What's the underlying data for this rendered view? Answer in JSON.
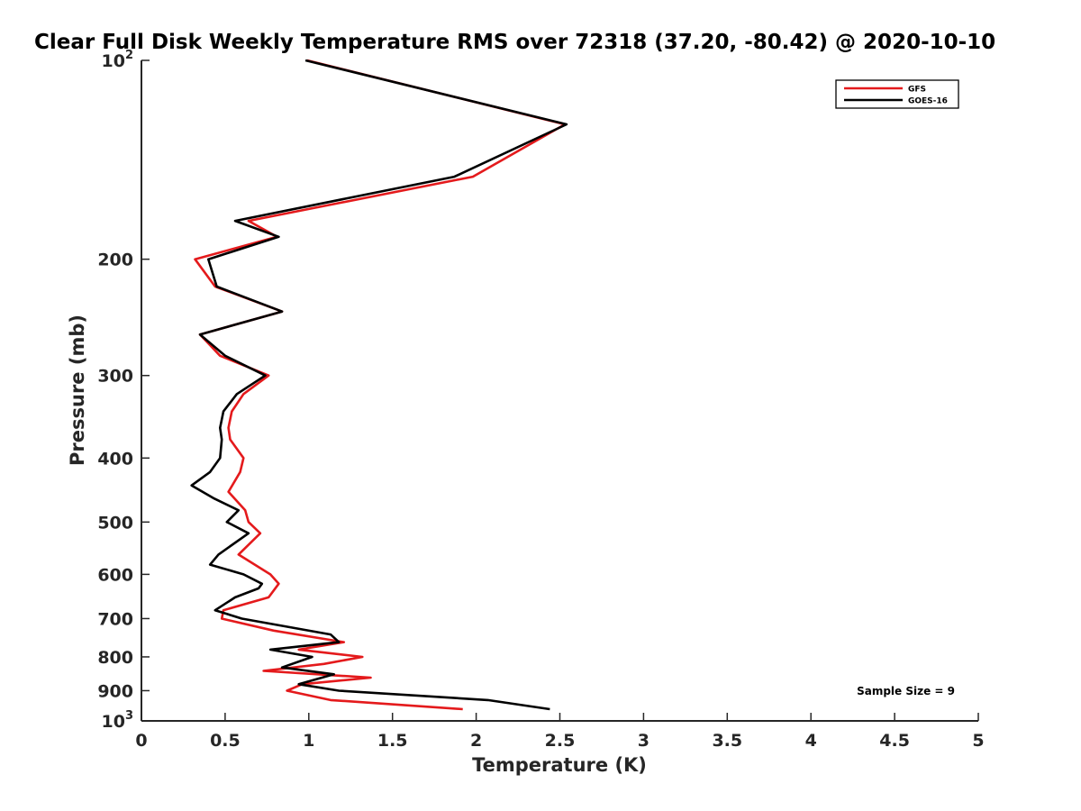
{
  "chart_data": {
    "type": "line",
    "title": "Clear Full Disk Weekly Temperature RMS over 72318 (37.20, -80.42) @ 2020-10-10",
    "xlabel": "Temperature (K)",
    "ylabel": "Pressure (mb)",
    "xlim": [
      0,
      5
    ],
    "ylim": [
      1000,
      100
    ],
    "yscale": "log",
    "y_reversed": true,
    "grid": false,
    "legend_position": "top-right",
    "x_ticks": [
      "0",
      "0.5",
      "1",
      "1.5",
      "2",
      "2.5",
      "3",
      "3.5",
      "4",
      "4.5",
      "5"
    ],
    "y_ticks": [
      {
        "value": 100,
        "base": "10",
        "exp": "2"
      },
      {
        "value": 200,
        "base": "200",
        "exp": ""
      },
      {
        "value": 300,
        "base": "300",
        "exp": ""
      },
      {
        "value": 400,
        "base": "400",
        "exp": ""
      },
      {
        "value": 500,
        "base": "500",
        "exp": ""
      },
      {
        "value": 600,
        "base": "600",
        "exp": ""
      },
      {
        "value": 700,
        "base": "700",
        "exp": ""
      },
      {
        "value": 800,
        "base": "800",
        "exp": ""
      },
      {
        "value": 900,
        "base": "900",
        "exp": ""
      },
      {
        "value": 1000,
        "base": "10",
        "exp": "3"
      }
    ],
    "series": [
      {
        "name": "GFS",
        "color": "#e41a1c",
        "points": [
          [
            0.99,
            100
          ],
          [
            2.53,
            125
          ],
          [
            1.98,
            150
          ],
          [
            0.64,
            175
          ],
          [
            0.81,
            185
          ],
          [
            0.32,
            200
          ],
          [
            0.44,
            220
          ],
          [
            0.84,
            240
          ],
          [
            0.35,
            260
          ],
          [
            0.47,
            280
          ],
          [
            0.76,
            300
          ],
          [
            0.61,
            320
          ],
          [
            0.54,
            340
          ],
          [
            0.52,
            360
          ],
          [
            0.53,
            375
          ],
          [
            0.61,
            400
          ],
          [
            0.59,
            420
          ],
          [
            0.52,
            450
          ],
          [
            0.62,
            480
          ],
          [
            0.64,
            500
          ],
          [
            0.71,
            520
          ],
          [
            0.58,
            560
          ],
          [
            0.77,
            600
          ],
          [
            0.82,
            620
          ],
          [
            0.76,
            650
          ],
          [
            0.49,
            680
          ],
          [
            0.48,
            700
          ],
          [
            0.79,
            730
          ],
          [
            1.21,
            760
          ],
          [
            0.94,
            780
          ],
          [
            1.32,
            800
          ],
          [
            1.09,
            820
          ],
          [
            0.73,
            840
          ],
          [
            1.37,
            860
          ],
          [
            0.96,
            880
          ],
          [
            0.87,
            900
          ],
          [
            1.13,
            930
          ],
          [
            1.92,
            960
          ]
        ]
      },
      {
        "name": "GOES-16",
        "color": "#000000",
        "points": [
          [
            0.98,
            100
          ],
          [
            2.54,
            125
          ],
          [
            1.87,
            150
          ],
          [
            0.56,
            175
          ],
          [
            0.82,
            185
          ],
          [
            0.4,
            200
          ],
          [
            0.45,
            220
          ],
          [
            0.84,
            240
          ],
          [
            0.35,
            260
          ],
          [
            0.5,
            280
          ],
          [
            0.74,
            300
          ],
          [
            0.57,
            320
          ],
          [
            0.49,
            340
          ],
          [
            0.47,
            360
          ],
          [
            0.48,
            375
          ],
          [
            0.47,
            400
          ],
          [
            0.41,
            420
          ],
          [
            0.3,
            440
          ],
          [
            0.43,
            460
          ],
          [
            0.58,
            480
          ],
          [
            0.51,
            500
          ],
          [
            0.64,
            520
          ],
          [
            0.46,
            560
          ],
          [
            0.41,
            580
          ],
          [
            0.61,
            600
          ],
          [
            0.72,
            620
          ],
          [
            0.7,
            630
          ],
          [
            0.56,
            650
          ],
          [
            0.44,
            680
          ],
          [
            0.6,
            700
          ],
          [
            1.13,
            740
          ],
          [
            1.18,
            760
          ],
          [
            0.77,
            780
          ],
          [
            1.02,
            800
          ],
          [
            0.84,
            830
          ],
          [
            1.15,
            850
          ],
          [
            0.94,
            880
          ],
          [
            1.18,
            900
          ],
          [
            2.07,
            930
          ],
          [
            2.44,
            960
          ]
        ]
      }
    ],
    "annotation": "Sample Size = 9"
  }
}
